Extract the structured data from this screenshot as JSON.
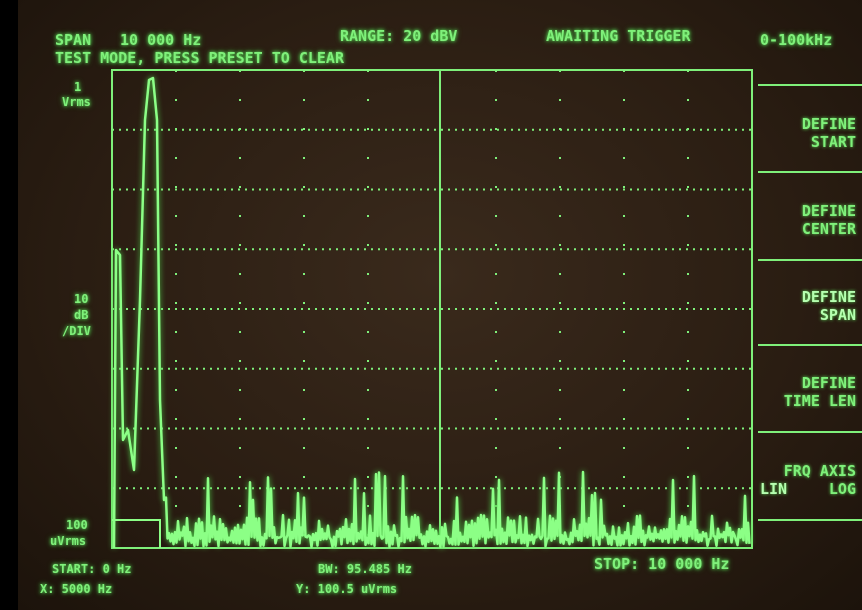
{
  "header": {
    "span_label": "SPAN",
    "span_value": "10 000 Hz",
    "range": "RANGE: 20 dBV",
    "status": "AWAITING TRIGGER",
    "band": "0-100kHz",
    "message": "TEST MODE, PRESS PRESET TO CLEAR"
  },
  "scale": {
    "top": [
      "1",
      "Vrms"
    ],
    "middle": [
      "10",
      "dB",
      "/DIV"
    ],
    "bottom": [
      "100",
      "uVrms"
    ]
  },
  "softkeys": [
    {
      "lines": [
        "DEFINE",
        "START"
      ]
    },
    {
      "lines": [
        "DEFINE",
        "CENTER"
      ]
    },
    {
      "lines": [
        "DEFINE",
        "SPAN"
      ]
    },
    {
      "lines": [
        "DEFINE",
        "TIME LEN"
      ]
    },
    {
      "lines": [
        "FRQ AXIS",
        "LIN",
        "LOG"
      ]
    }
  ],
  "footer": {
    "start": "START: 0 Hz",
    "bw": "BW: 95.485 Hz",
    "stop": "STOP: 10 000 Hz",
    "x_marker": "X: 5000 Hz",
    "y_marker": "Y: 100.5 uVrms"
  }
}
